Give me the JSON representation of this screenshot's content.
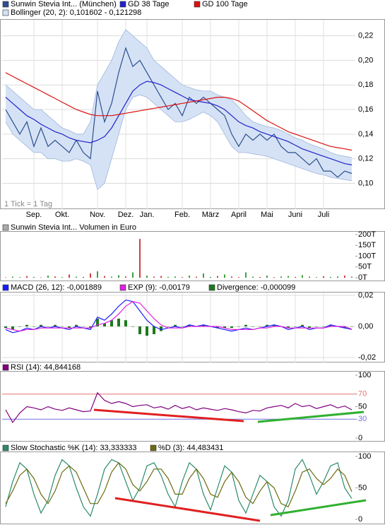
{
  "chart_data": [
    {
      "type": "line",
      "categories": [
        null,
        null,
        null,
        null,
        "Sep.",
        null,
        null,
        null,
        "Okt.",
        null,
        null,
        null,
        null,
        "Nov.",
        null,
        null,
        null,
        "Dez.",
        null,
        null,
        "Jan.",
        null,
        null,
        null,
        null,
        "Feb.",
        null,
        null,
        null,
        "März",
        null,
        null,
        null,
        "April",
        null,
        null,
        null,
        "Mai",
        null,
        null,
        null,
        "Juni",
        null,
        null,
        null,
        "Juli",
        null,
        null,
        null,
        null
      ],
      "series": [
        {
          "name": "Sunwin Stevia Int... (München)",
          "color": "#2b4f8f",
          "values": [
            0.16,
            0.15,
            0.14,
            0.15,
            0.13,
            0.145,
            0.13,
            0.135,
            0.13,
            0.125,
            0.135,
            0.125,
            0.12,
            0.175,
            0.15,
            0.165,
            0.19,
            0.21,
            0.195,
            0.2,
            0.19,
            0.18,
            0.17,
            0.16,
            0.165,
            0.155,
            0.17,
            0.165,
            0.17,
            0.165,
            0.16,
            0.155,
            0.14,
            0.13,
            0.14,
            0.135,
            0.14,
            0.135,
            0.14,
            0.13,
            0.125,
            0.125,
            0.12,
            0.115,
            0.12,
            0.11,
            0.11,
            0.105,
            0.11,
            0.108
          ]
        },
        {
          "name": "GD 38 Tage",
          "color": "#2222cc",
          "values": [
            0.17,
            0.165,
            0.16,
            0.155,
            0.152,
            0.148,
            0.145,
            0.142,
            0.14,
            0.137,
            0.135,
            0.134,
            0.133,
            0.135,
            0.138,
            0.145,
            0.155,
            0.165,
            0.175,
            0.18,
            0.183,
            0.182,
            0.18,
            0.177,
            0.174,
            0.171,
            0.168,
            0.167,
            0.166,
            0.165,
            0.163,
            0.16,
            0.155,
            0.15,
            0.147,
            0.145,
            0.142,
            0.14,
            0.138,
            0.136,
            0.134,
            0.131,
            0.128,
            0.126,
            0.124,
            0.122,
            0.12,
            0.118,
            0.116,
            0.115
          ]
        },
        {
          "name": "GD 100 Tage",
          "color": "#dd1111",
          "values": [
            0.19,
            0.187,
            0.184,
            0.181,
            0.178,
            0.175,
            0.172,
            0.169,
            0.166,
            0.163,
            0.16,
            0.158,
            0.156,
            0.155,
            0.155,
            0.155,
            0.156,
            0.157,
            0.158,
            0.159,
            0.16,
            0.161,
            0.162,
            0.163,
            0.164,
            0.165,
            0.166,
            0.167,
            0.168,
            0.169,
            0.17,
            0.17,
            0.169,
            0.167,
            0.163,
            0.159,
            0.155,
            0.151,
            0.148,
            0.145,
            0.142,
            0.14,
            0.138,
            0.136,
            0.134,
            0.132,
            0.13,
            0.129,
            0.128,
            0.127
          ]
        }
      ],
      "band": {
        "name": "Bollinger (20, 2): 0,101602 - 0,121298",
        "color": "#d5e2f5",
        "upper": [
          0.18,
          0.175,
          0.17,
          0.165,
          0.16,
          0.16,
          0.155,
          0.15,
          0.145,
          0.143,
          0.14,
          0.14,
          0.15,
          0.18,
          0.19,
          0.2,
          0.215,
          0.225,
          0.22,
          0.215,
          0.21,
          0.2,
          0.195,
          0.19,
          0.185,
          0.18,
          0.178,
          0.176,
          0.175,
          0.175,
          0.172,
          0.17,
          0.168,
          0.162,
          0.155,
          0.15,
          0.148,
          0.146,
          0.145,
          0.143,
          0.14,
          0.137,
          0.135,
          0.132,
          0.13,
          0.128,
          0.125,
          0.123,
          0.122,
          0.121
        ],
        "lower": [
          0.15,
          0.14,
          0.135,
          0.13,
          0.125,
          0.125,
          0.12,
          0.12,
          0.118,
          0.118,
          0.12,
          0.118,
          0.115,
          0.095,
          0.1,
          0.12,
          0.14,
          0.16,
          0.17,
          0.172,
          0.17,
          0.165,
          0.16,
          0.155,
          0.15,
          0.15,
          0.152,
          0.155,
          0.158,
          0.155,
          0.15,
          0.14,
          0.13,
          0.125,
          0.125,
          0.124,
          0.123,
          0.122,
          0.12,
          0.118,
          0.116,
          0.114,
          0.112,
          0.11,
          0.108,
          0.107,
          0.105,
          0.104,
          0.103,
          0.102
        ]
      },
      "ylim": [
        0.079,
        0.233
      ],
      "yticks": [
        {
          "value": 0.1,
          "label": "0,10"
        },
        {
          "value": 0.12,
          "label": "0,12"
        },
        {
          "value": 0.14,
          "label": "0,14"
        },
        {
          "value": 0.16,
          "label": "0,16"
        },
        {
          "value": 0.18,
          "label": "0,18"
        },
        {
          "value": 0.2,
          "label": "0,20"
        },
        {
          "value": 0.22,
          "label": "0,22"
        }
      ],
      "annotation": "1 Tick = 1 Tag",
      "grid": true
    },
    {
      "type": "bar",
      "title": "Sunwin Stevia Int... Volumen in Euro",
      "color": "#aaaaaa",
      "values": [
        2,
        5,
        3,
        8,
        4,
        2,
        10,
        6,
        3,
        15,
        5,
        4,
        20,
        30,
        8,
        5,
        12,
        6,
        25,
        180,
        10,
        5,
        8,
        4,
        6,
        3,
        10,
        5,
        20,
        4,
        8,
        15,
        6,
        3,
        25,
        5,
        4,
        10,
        3,
        6,
        8,
        4,
        12,
        5,
        3,
        7,
        4,
        6,
        10,
        5
      ],
      "colors": [
        "#d04040",
        "#40a040",
        "#40a040",
        "#d04040",
        "#40a040",
        "#d04040",
        "#40a040",
        "#d04040",
        "#40a040",
        "#d04040",
        "#40a040",
        "#d04040",
        "#d04040",
        "#40a040",
        "#d04040",
        "#40a040",
        "#40a040",
        "#d04040",
        "#40a040",
        "#d04040",
        "#40a040",
        "#d04040",
        "#d04040",
        "#40a040",
        "#40a040",
        "#d04040",
        "#40a040",
        "#d04040",
        "#40a040",
        "#40a040",
        "#d04040",
        "#40a040",
        "#d04040",
        "#d04040",
        "#40a040",
        "#40a040",
        "#d04040",
        "#40a040",
        "#d04040",
        "#40a040",
        "#40a040",
        "#d04040",
        "#40a040",
        "#d04040",
        "#40a040",
        "#d04040",
        "#40a040",
        "#40a040",
        "#d04040",
        "#40a040"
      ],
      "ylim": [
        -16,
        213
      ],
      "yticks": [
        {
          "value": 0,
          "label": "0T"
        },
        {
          "value": 50,
          "label": "50T"
        },
        {
          "value": 100,
          "label": "100T"
        },
        {
          "value": 150,
          "label": "150T"
        },
        {
          "value": 200,
          "label": "200T"
        }
      ]
    },
    {
      "type": "macd",
      "series": [
        {
          "name": "MACD (26, 12): -0,001889",
          "color": "#1a1aff",
          "kind": "line",
          "values": [
            -0.002,
            -0.004,
            -0.003,
            -0.001,
            -0.002,
            0,
            -0.001,
            0,
            -0.001,
            -0.002,
            0,
            -0.001,
            -0.002,
            0.006,
            0.004,
            0.008,
            0.013,
            0.017,
            0.016,
            0.01,
            0.004,
            0,
            -0.002,
            -0.001,
            0,
            -0.001,
            0.001,
            0,
            0.001,
            0,
            -0.001,
            -0.002,
            -0.003,
            -0.002,
            -0.001,
            -0.002,
            -0.001,
            0,
            0.001,
            0,
            -0.002,
            -0.001,
            0,
            -0.002,
            -0.001,
            -0.001,
            0.001,
            0,
            -0.001,
            -0.0019
          ]
        },
        {
          "name": "EXP (9): -0,00179",
          "color": "#e020e0",
          "kind": "line",
          "values": [
            -0.001,
            -0.002,
            -0.003,
            -0.002,
            -0.002,
            -0.001,
            -0.001,
            -0.001,
            -0.001,
            -0.001,
            -0.001,
            -0.001,
            -0.001,
            0.001,
            0.002,
            0.004,
            0.008,
            0.013,
            0.016,
            0.015,
            0.01,
            0.005,
            0.001,
            -0.001,
            -0.001,
            -0.001,
            0,
            0,
            0,
            0,
            0,
            -0.001,
            -0.002,
            -0.002,
            -0.002,
            -0.002,
            -0.001,
            -0.001,
            0,
            0,
            -0.001,
            -0.001,
            -0.001,
            -0.001,
            -0.001,
            -0.001,
            0,
            0,
            0,
            -0.0018
          ]
        },
        {
          "name": "Divergence: -0,000099",
          "color": "#1c7a1c",
          "kind": "bar",
          "values": [
            -0.001,
            -0.002,
            0,
            0.001,
            0,
            0.001,
            0,
            0.001,
            0,
            -0.001,
            0.001,
            0,
            -0.001,
            0.005,
            0.002,
            0.004,
            0.005,
            0.004,
            0,
            -0.005,
            -0.006,
            -0.005,
            -0.003,
            0,
            0.001,
            0,
            0.001,
            0,
            0.001,
            0,
            -0.001,
            -0.001,
            -0.001,
            0,
            0.001,
            0,
            0,
            0.001,
            0.001,
            0,
            -0.001,
            0,
            0.001,
            -0.001,
            0,
            0,
            0.001,
            0,
            -0.001,
            -0.0001
          ]
        }
      ],
      "ylim": [
        -0.0232,
        0.0218
      ],
      "yticks": [
        {
          "value": -0.02,
          "label": "-0,02"
        },
        {
          "value": 0,
          "label": "0,00"
        },
        {
          "value": 0.02,
          "label": "0,02"
        }
      ],
      "grid": true
    },
    {
      "type": "line",
      "series": [
        {
          "name": "RSI (14): 44,844168",
          "color": "#800080",
          "values": [
            45,
            25,
            40,
            50,
            48,
            45,
            50,
            46,
            44,
            48,
            45,
            42,
            43,
            72,
            60,
            55,
            58,
            55,
            50,
            52,
            53,
            48,
            50,
            46,
            52,
            47,
            50,
            45,
            48,
            46,
            44,
            47,
            45,
            42,
            40,
            44,
            43,
            48,
            50,
            52,
            48,
            55,
            50,
            52,
            47,
            50,
            53,
            48,
            51,
            45
          ]
        }
      ],
      "reference_lines": [
        {
          "value": 70,
          "color": "#e87070"
        },
        {
          "value": 30,
          "color": "#7070e8"
        }
      ],
      "ylim": [
        -5.6,
        105.6
      ],
      "yticks": [
        0,
        30,
        50,
        70,
        100
      ]
    },
    {
      "type": "line",
      "series": [
        {
          "name": "Slow Stochastic %K (14): 33,333333",
          "color": "#2a8a6a",
          "values": [
            20,
            60,
            90,
            80,
            40,
            10,
            30,
            70,
            95,
            85,
            50,
            20,
            5,
            40,
            80,
            95,
            90,
            60,
            30,
            50,
            85,
            90,
            70,
            40,
            20,
            60,
            90,
            80,
            40,
            15,
            50,
            85,
            75,
            30,
            10,
            40,
            70,
            60,
            20,
            5,
            30,
            80,
            95,
            70,
            40,
            60,
            85,
            90,
            50,
            33
          ]
        },
        {
          "name": "%D (3): 44,483431",
          "color": "#6b6b10",
          "values": [
            25,
            45,
            70,
            80,
            65,
            40,
            25,
            45,
            75,
            85,
            75,
            50,
            25,
            25,
            45,
            75,
            90,
            80,
            55,
            45,
            60,
            80,
            80,
            65,
            40,
            40,
            65,
            80,
            65,
            40,
            35,
            60,
            75,
            60,
            35,
            25,
            45,
            60,
            50,
            25,
            20,
            45,
            75,
            80,
            65,
            55,
            65,
            80,
            70,
            44
          ]
        }
      ],
      "ylim": [
        -7.9,
        106.7
      ],
      "yticks": [
        0,
        50,
        100
      ]
    }
  ]
}
